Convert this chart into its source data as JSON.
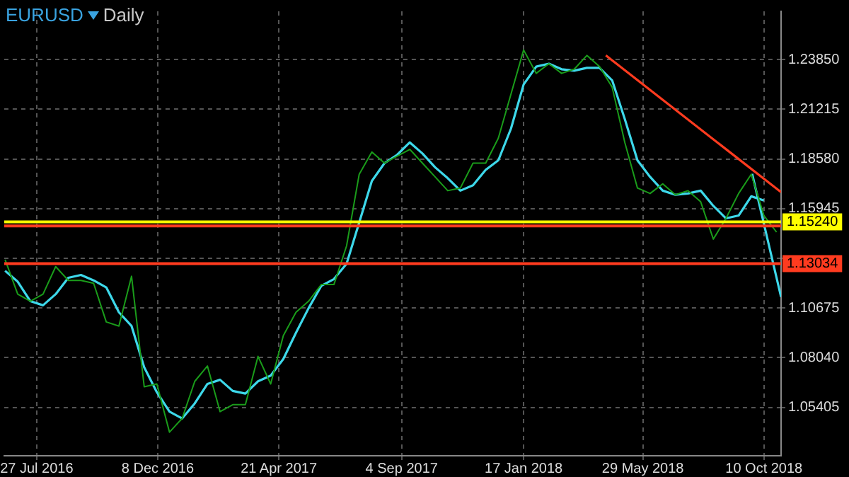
{
  "chart_data": {
    "type": "line",
    "title": "EURUSD",
    "subtitle": "Daily",
    "grid": true,
    "legend": false,
    "marker": "none",
    "xlim": [
      "2016-06-21",
      "2018-10-29"
    ],
    "xticks": [
      {
        "value": "2016-07-27",
        "label": "27 Jul 2016"
      },
      {
        "value": "2016-12-08",
        "label": "8 Dec 2016"
      },
      {
        "value": "2017-04-21",
        "label": "21 Apr 2017"
      },
      {
        "value": "2017-09-04",
        "label": "4 Sep 2017"
      },
      {
        "value": "2018-01-17",
        "label": "17 Jan 2018"
      },
      {
        "value": "2018-05-29",
        "label": "29 May 2018"
      },
      {
        "value": "2018-10-10",
        "label": "10 Oct 2018"
      }
    ],
    "ylim": [
      1.0284,
      1.2641
    ],
    "yticks": [
      {
        "value": 1.05405,
        "label": "1.05405"
      },
      {
        "value": 1.0804,
        "label": "1.08040"
      },
      {
        "value": 1.10675,
        "label": "1.10675"
      },
      {
        "value": 1.1331,
        "label": null
      },
      {
        "value": 1.15945,
        "label": "1.15945"
      },
      {
        "value": 1.1858,
        "label": "1.18580"
      },
      {
        "value": 1.21215,
        "label": "1.21215"
      },
      {
        "value": 1.2385,
        "label": "1.23850"
      }
    ],
    "x": [
      "2016-06-22",
      "2016-07-06",
      "2016-07-20",
      "2016-08-03",
      "2016-08-17",
      "2016-08-31",
      "2016-09-14",
      "2016-09-28",
      "2016-10-12",
      "2016-10-26",
      "2016-11-09",
      "2016-11-23",
      "2016-12-07",
      "2016-12-21",
      "2017-01-04",
      "2017-01-18",
      "2017-02-01",
      "2017-02-15",
      "2017-03-01",
      "2017-03-15",
      "2017-03-29",
      "2017-04-12",
      "2017-04-26",
      "2017-05-10",
      "2017-05-24",
      "2017-06-07",
      "2017-06-21",
      "2017-07-05",
      "2017-07-19",
      "2017-08-02",
      "2017-08-16",
      "2017-08-30",
      "2017-09-13",
      "2017-09-27",
      "2017-10-11",
      "2017-10-25",
      "2017-11-08",
      "2017-11-22",
      "2017-12-06",
      "2017-12-20",
      "2018-01-03",
      "2018-01-17",
      "2018-01-31",
      "2018-02-14",
      "2018-02-28",
      "2018-03-14",
      "2018-03-28",
      "2018-04-11",
      "2018-04-25",
      "2018-05-09",
      "2018-05-23",
      "2018-06-06",
      "2018-06-20",
      "2018-07-04",
      "2018-07-18",
      "2018-08-01",
      "2018-08-15",
      "2018-08-29",
      "2018-09-12",
      "2018-09-26",
      "2018-10-10",
      "2018-10-24"
    ],
    "series": [
      {
        "color": "#1a9c1a",
        "values": [
          1.1324,
          1.1141,
          1.1104,
          1.1141,
          1.1287,
          1.1214,
          1.1214,
          1.1199,
          1.0994,
          1.0972,
          1.1236,
          1.065,
          1.0665,
          1.0409,
          1.0482,
          1.0679,
          1.076,
          1.0518,
          1.0555,
          1.0555,
          1.0811,
          1.0665,
          1.0921,
          1.1045,
          1.1104,
          1.1192,
          1.1192,
          1.1397,
          1.1777,
          1.1895,
          1.1836,
          1.1873,
          1.1909,
          1.1836,
          1.1763,
          1.169,
          1.1704,
          1.1836,
          1.1836,
          1.1968,
          1.2202,
          1.2436,
          1.2312,
          1.2363,
          1.2312,
          1.2334,
          1.2407,
          1.2348,
          1.2239,
          1.1946,
          1.1704,
          1.1675,
          1.1726,
          1.1668,
          1.169,
          1.1631,
          1.1433,
          1.1543,
          1.1675,
          1.1777,
          1.1558,
          1.147
        ]
      },
      {
        "color": "#3dd8ea",
        "values": [
          1.1265,
          1.1207,
          1.1104,
          1.1082,
          1.1141,
          1.1228,
          1.1243,
          1.1214,
          1.1177,
          1.1045,
          1.0972,
          1.0753,
          1.0621,
          1.0518,
          1.0482,
          1.0562,
          1.0665,
          1.0687,
          1.0628,
          1.0614,
          1.0679,
          1.0709,
          1.0797,
          1.0936,
          1.1067,
          1.1185,
          1.1221,
          1.1302,
          1.1521,
          1.1741,
          1.1836,
          1.188,
          1.1946,
          1.1887,
          1.1814,
          1.1756,
          1.169,
          1.1719,
          1.18,
          1.1851,
          1.2019,
          1.2253,
          1.2348,
          1.2363,
          1.2334,
          1.2326,
          1.2341,
          1.2341,
          1.2275,
          1.207,
          1.1851,
          1.1763,
          1.169,
          1.1668,
          1.1675,
          1.169,
          1.1609,
          1.1543,
          1.1558,
          1.166,
          1.1638,
          null
        ]
      },
      {
        "color": "#ff3b1f",
        "x": [
          "2018-04-18",
          "2018-10-29"
        ],
        "values": [
          1.2407,
          1.1682
        ]
      },
      {
        "color": "#3dd8ea",
        "x": [
          "2018-09-27",
          "2018-10-29"
        ],
        "values": [
          1.1779,
          1.1126
        ]
      }
    ],
    "ref_lines": [
      {
        "axis": "y",
        "value": 1.1524,
        "label": "1.15240",
        "color": "#ffff00"
      },
      {
        "axis": "y",
        "value": 1.1503,
        "color": "#ff3b1f"
      },
      {
        "axis": "y",
        "value": 1.13034,
        "label": "1.13034",
        "color": "#ff3b1f"
      }
    ]
  }
}
